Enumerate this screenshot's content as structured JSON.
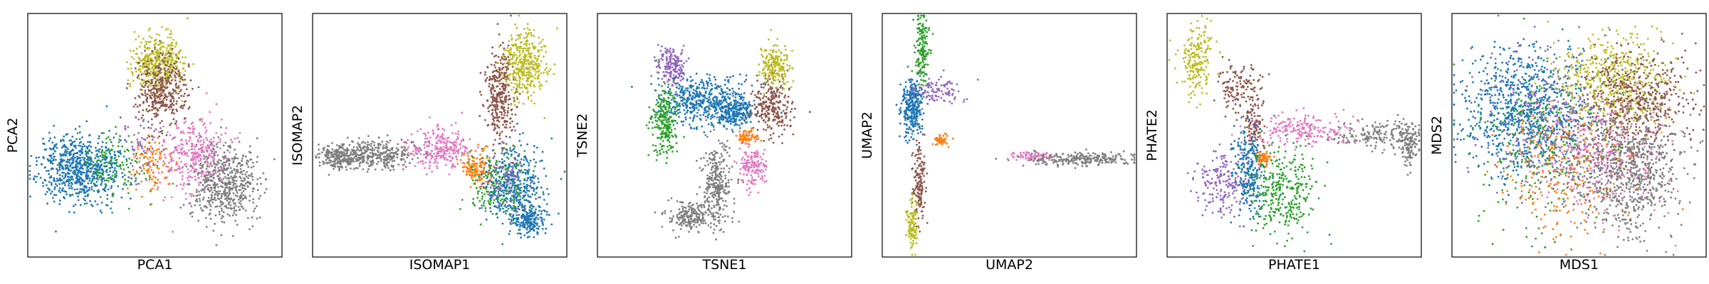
{
  "chart_data": [
    {
      "type": "scatter",
      "xlabel": "PCA1",
      "ylabel": "PCA2",
      "xlim": [
        0,
        100
      ],
      "ylim": [
        0,
        100
      ],
      "clusters": [
        {
          "color": "#1f77b4",
          "count": 720,
          "shape": [
            {
              "c": [
                20,
                36
              ],
              "s": [
                8,
                7
              ],
              "w": 1
            }
          ]
        },
        {
          "color": "#2ca02c",
          "count": 140,
          "shape": [
            {
              "c": [
                34,
                37
              ],
              "s": [
                8,
                7
              ],
              "w": 1
            }
          ]
        },
        {
          "color": "#ff7f0e",
          "count": 100,
          "shape": [
            {
              "c": [
                49,
                38
              ],
              "s": [
                4,
                6
              ],
              "w": 1
            }
          ]
        },
        {
          "color": "#9467bd",
          "count": 60,
          "shape": [
            {
              "c": [
                45,
                45
              ],
              "s": [
                5,
                8
              ],
              "w": 1
            }
          ]
        },
        {
          "color": "#e377c2",
          "count": 320,
          "shape": [
            {
              "c": [
                66,
                41
              ],
              "s": [
                7,
                8
              ],
              "w": 1
            }
          ]
        },
        {
          "color": "#7f7f7f",
          "count": 540,
          "shape": [
            {
              "c": [
                78,
                30
              ],
              "s": [
                7,
                8
              ],
              "w": 1
            }
          ]
        },
        {
          "color": "#bcbd22",
          "count": 420,
          "shape": [
            {
              "c": [
                51,
                80
              ],
              "s": [
                5,
                6
              ],
              "w": 1
            }
          ]
        },
        {
          "color": "#8c564b",
          "count": 380,
          "shape": [
            {
              "c": [
                53,
                69
              ],
              "s": [
                5,
                7
              ],
              "w": 1
            }
          ]
        }
      ]
    },
    {
      "type": "scatter",
      "xlabel": "ISOMAP1",
      "ylabel": "ISOMAP2",
      "xlim": [
        0,
        100
      ],
      "ylim": [
        0,
        100
      ],
      "clusters": [
        {
          "color": "#7f7f7f",
          "count": 560,
          "shape": [
            {
              "c": [
                24,
                42
              ],
              "s": [
                9,
                3
              ],
              "w": 1
            },
            {
              "c": [
                10,
                41
              ],
              "s": [
                4,
                2.5
              ],
              "w": 0.5
            }
          ]
        },
        {
          "color": "#e377c2",
          "count": 260,
          "shape": [
            {
              "c": [
                50,
                45
              ],
              "s": [
                6,
                4
              ],
              "w": 1
            }
          ]
        },
        {
          "color": "#ff7f0e",
          "count": 150,
          "shape": [
            {
              "c": [
                65,
                36
              ],
              "s": [
                3,
                4
              ],
              "w": 1
            }
          ]
        },
        {
          "color": "#2ca02c",
          "count": 230,
          "shape": [
            {
              "c": [
                74,
                29
              ],
              "s": [
                6,
                7
              ],
              "w": 1
            }
          ]
        },
        {
          "color": "#1f77b4",
          "count": 560,
          "shape": [
            {
              "c": [
                80,
                28
              ],
              "s": [
                6,
                9
              ],
              "w": 1
            },
            {
              "c": [
                86,
                14
              ],
              "s": [
                3,
                3
              ],
              "w": 0.4
            }
          ]
        },
        {
          "color": "#9467bd",
          "count": 80,
          "shape": [
            {
              "c": [
                75,
                32
              ],
              "s": [
                5,
                7
              ],
              "w": 1
            }
          ]
        },
        {
          "color": "#8c564b",
          "count": 330,
          "shape": [
            {
              "c": [
                74,
                66
              ],
              "s": [
                3,
                10
              ],
              "w": 1
            }
          ]
        },
        {
          "color": "#bcbd22",
          "count": 380,
          "shape": [
            {
              "c": [
                84,
                80
              ],
              "s": [
                4,
                7
              ],
              "w": 1
            }
          ]
        }
      ]
    },
    {
      "type": "scatter",
      "xlabel": "TSNE1",
      "ylabel": "TSNE2",
      "xlim": [
        0,
        100
      ],
      "ylim": [
        0,
        100
      ],
      "clusters": [
        {
          "color": "#9467bd",
          "count": 180,
          "shape": [
            {
              "c": [
                29,
                79
              ],
              "s": [
                3,
                4
              ],
              "w": 1
            }
          ]
        },
        {
          "color": "#1f77b4",
          "count": 680,
          "shape": [
            {
              "c": [
                42,
                64
              ],
              "s": [
                9,
                5
              ],
              "w": 1
            },
            {
              "c": [
                54,
                60
              ],
              "s": [
                4,
                3
              ],
              "w": 0.4
            }
          ]
        },
        {
          "color": "#2ca02c",
          "count": 240,
          "shape": [
            {
              "c": [
                26,
                56
              ],
              "s": [
                2.5,
                7
              ],
              "w": 1
            }
          ]
        },
        {
          "color": "#8c564b",
          "count": 260,
          "shape": [
            {
              "c": [
                69,
                62
              ],
              "s": [
                4,
                6
              ],
              "w": 1
            }
          ]
        },
        {
          "color": "#bcbd22",
          "count": 190,
          "shape": [
            {
              "c": [
                70,
                79
              ],
              "s": [
                3,
                4
              ],
              "w": 1
            }
          ]
        },
        {
          "color": "#ff7f0e",
          "count": 70,
          "shape": [
            {
              "c": [
                59,
                49
              ],
              "s": [
                2,
                1.5
              ],
              "w": 1
            }
          ]
        },
        {
          "color": "#e377c2",
          "count": 160,
          "shape": [
            {
              "c": [
                61,
                37
              ],
              "s": [
                3,
                4
              ],
              "w": 1
            }
          ]
        },
        {
          "color": "#7f7f7f",
          "count": 500,
          "shape": [
            {
              "c": [
                47,
                30
              ],
              "s": [
                3,
                9
              ],
              "w": 1
            },
            {
              "c": [
                36,
                16
              ],
              "s": [
                5,
                3
              ],
              "w": 0.6
            }
          ]
        }
      ]
    },
    {
      "type": "scatter",
      "xlabel": "UMAP2",
      "ylabel": "UMAP2",
      "xlim": [
        0,
        100
      ],
      "ylim": [
        0,
        100
      ],
      "clusters": [
        {
          "color": "#2ca02c",
          "count": 160,
          "shape": [
            {
              "c": [
                15,
                86
              ],
              "s": [
                1.4,
                9
              ],
              "w": 1
            }
          ]
        },
        {
          "color": "#1f77b4",
          "count": 300,
          "shape": [
            {
              "c": [
                11,
                61
              ],
              "s": [
                2,
                6
              ],
              "w": 1
            }
          ]
        },
        {
          "color": "#9467bd",
          "count": 110,
          "shape": [
            {
              "c": [
                20,
                69
              ],
              "s": [
                5,
                3
              ],
              "w": 1
            }
          ]
        },
        {
          "color": "#ff7f0e",
          "count": 50,
          "shape": [
            {
              "c": [
                23,
                48
              ],
              "s": [
                1.6,
                1.2
              ],
              "w": 1
            }
          ]
        },
        {
          "color": "#8c564b",
          "count": 150,
          "shape": [
            {
              "c": [
                14,
                31
              ],
              "s": [
                1.4,
                9
              ],
              "w": 1
            }
          ]
        },
        {
          "color": "#bcbd22",
          "count": 110,
          "shape": [
            {
              "c": [
                11,
                12
              ],
              "s": [
                1.2,
                5
              ],
              "w": 1
            }
          ]
        },
        {
          "color": "#e377c2",
          "count": 80,
          "shape": [
            {
              "c": [
                59,
                41
              ],
              "s": [
                5,
                1
              ],
              "w": 1
            }
          ]
        },
        {
          "color": "#7f7f7f",
          "count": 260,
          "shape": [
            {
              "c": [
                80,
                40
              ],
              "s": [
                11,
                1.3
              ],
              "w": 1
            }
          ]
        }
      ]
    },
    {
      "type": "scatter",
      "xlabel": "PHATE1",
      "ylabel": "PHATE2",
      "xlim": [
        0,
        100
      ],
      "ylim": [
        0,
        100
      ],
      "clusters": [
        {
          "color": "#bcbd22",
          "count": 200,
          "shape": [
            {
              "c": [
                11,
                82
              ],
              "s": [
                3,
                8
              ],
              "w": 1
            }
          ]
        },
        {
          "color": "#8c564b",
          "count": 240,
          "shape": [
            {
              "c": [
                28,
                70
              ],
              "s": [
                4,
                6
              ],
              "w": 1
            },
            {
              "c": [
                34,
                52
              ],
              "s": [
                2,
                5
              ],
              "w": 0.7
            }
          ]
        },
        {
          "color": "#9467bd",
          "count": 200,
          "shape": [
            {
              "c": [
                21,
                30
              ],
              "s": [
                6,
                7
              ],
              "w": 1
            }
          ]
        },
        {
          "color": "#1f77b4",
          "count": 260,
          "shape": [
            {
              "c": [
                32,
                35
              ],
              "s": [
                3,
                9
              ],
              "w": 1
            }
          ]
        },
        {
          "color": "#2ca02c",
          "count": 320,
          "shape": [
            {
              "c": [
                46,
                26
              ],
              "s": [
                6,
                9
              ],
              "w": 1
            }
          ]
        },
        {
          "color": "#ff7f0e",
          "count": 50,
          "shape": [
            {
              "c": [
                38,
                40
              ],
              "s": [
                1.5,
                1.5
              ],
              "w": 1
            }
          ]
        },
        {
          "color": "#e377c2",
          "count": 200,
          "shape": [
            {
              "c": [
                52,
                52
              ],
              "s": [
                9,
                3
              ],
              "w": 1
            }
          ]
        },
        {
          "color": "#7f7f7f",
          "count": 300,
          "shape": [
            {
              "c": [
                84,
                50
              ],
              "s": [
                10,
                3
              ],
              "w": 1
            },
            {
              "c": [
                96,
                46
              ],
              "s": [
                2,
                4
              ],
              "w": 0.5
            }
          ]
        }
      ]
    },
    {
      "type": "scatter",
      "xlabel": "MDS1",
      "ylabel": "MDS2",
      "xlim": [
        0,
        100
      ],
      "ylim": [
        0,
        100
      ],
      "clusters": [
        {
          "color": "#1f77b4",
          "count": 900,
          "shape": [
            {
              "c": [
                29,
                60
              ],
              "s": [
                13,
                13
              ],
              "w": 1
            }
          ]
        },
        {
          "color": "#2ca02c",
          "count": 300,
          "shape": [
            {
              "c": [
                36,
                45
              ],
              "s": [
                13,
                16
              ],
              "w": 1
            }
          ]
        },
        {
          "color": "#9467bd",
          "count": 300,
          "shape": [
            {
              "c": [
                40,
                55
              ],
              "s": [
                14,
                14
              ],
              "w": 1
            }
          ]
        },
        {
          "color": "#ff7f0e",
          "count": 260,
          "shape": [
            {
              "c": [
                44,
                36
              ],
              "s": [
                12,
                13
              ],
              "w": 1
            }
          ]
        },
        {
          "color": "#bcbd22",
          "count": 520,
          "shape": [
            {
              "c": [
                63,
                72
              ],
              "s": [
                11,
                10
              ],
              "w": 1
            }
          ]
        },
        {
          "color": "#8c564b",
          "count": 520,
          "shape": [
            {
              "c": [
                74,
                64
              ],
              "s": [
                10,
                11
              ],
              "w": 1
            }
          ]
        },
        {
          "color": "#e377c2",
          "count": 320,
          "shape": [
            {
              "c": [
                58,
                40
              ],
              "s": [
                14,
                12
              ],
              "w": 1
            }
          ]
        },
        {
          "color": "#7f7f7f",
          "count": 720,
          "shape": [
            {
              "c": [
                70,
                34
              ],
              "s": [
                11,
                12
              ],
              "w": 1
            }
          ]
        }
      ]
    }
  ]
}
